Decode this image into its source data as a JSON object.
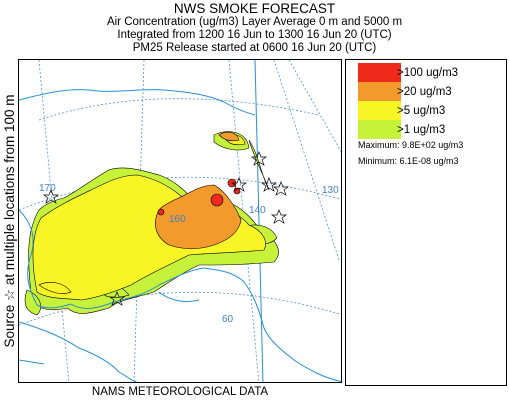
{
  "header": {
    "title": "NWS SMOKE FORECAST",
    "line1": "Air Concentration (ug/m3) Layer Average    0 m and  5000 m",
    "line2": "Integrated from 1200 16 Jun to 1300 16 Jun 20 (UTC)",
    "line3": "PM25 Release started at 0600 16 Jun 20 (UTC)"
  },
  "side_label": "Source ☆  at multiple locations     from  100 m",
  "footer": "NAMS METEOROLOGICAL DATA",
  "legend": {
    "items": [
      {
        "label": ">100 ug/m3",
        "color": "#ef2a1b"
      },
      {
        "label": ">20 ug/m3",
        "color": "#f29a2c"
      },
      {
        "label": ">5 ug/m3",
        "color": "#f7f526"
      },
      {
        "label": ">1 ug/m3",
        "color": "#c7f23a"
      }
    ],
    "maximum": "Maximum: 9.8E+02 ug/m3",
    "minimum": "Minimum: 6.1E-08 ug/m3"
  },
  "map": {
    "grid_labels": {
      "lon_170": "170",
      "lon_160": "160",
      "lon_140": "140",
      "lon_130": "130",
      "lat_60": "60"
    },
    "colors": {
      "grid": "#4f8fdc",
      "coast": "#2a8fd6",
      "border": "#2a8fd6"
    }
  }
}
